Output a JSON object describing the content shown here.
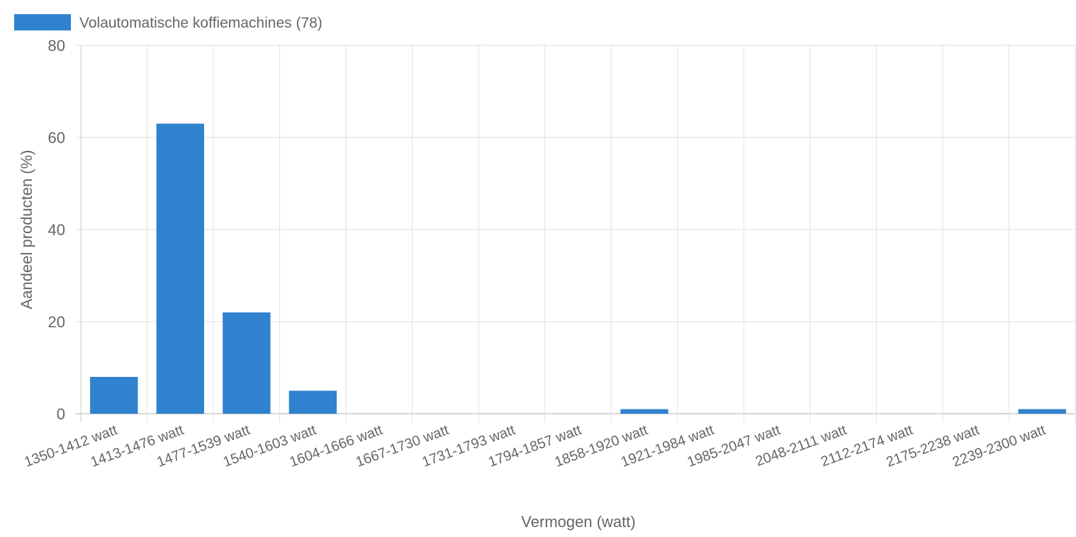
{
  "chart_data": {
    "type": "bar",
    "categories": [
      "1350-1412 watt",
      "1413-1476 watt",
      "1477-1539 watt",
      "1540-1603 watt",
      "1604-1666 watt",
      "1667-1730 watt",
      "1731-1793 watt",
      "1794-1857 watt",
      "1858-1920 watt",
      "1921-1984 watt",
      "1985-2047 watt",
      "2048-2111 watt",
      "2112-2174 watt",
      "2175-2238 watt",
      "2239-2300 watt"
    ],
    "series": [
      {
        "name": "Volautomatische koffiemachines (78)",
        "color": "#3182ce",
        "values": [
          8,
          63,
          22,
          5,
          0,
          0,
          0,
          0,
          1,
          0,
          0,
          0,
          0,
          0,
          1
        ]
      }
    ],
    "xlabel": "Vermogen (watt)",
    "ylabel": "Aandeel producten (%)",
    "ylim": [
      0,
      80
    ],
    "yticks": [
      "0",
      "20",
      "40",
      "60",
      "80"
    ],
    "grid": true,
    "legend": "top-left"
  }
}
